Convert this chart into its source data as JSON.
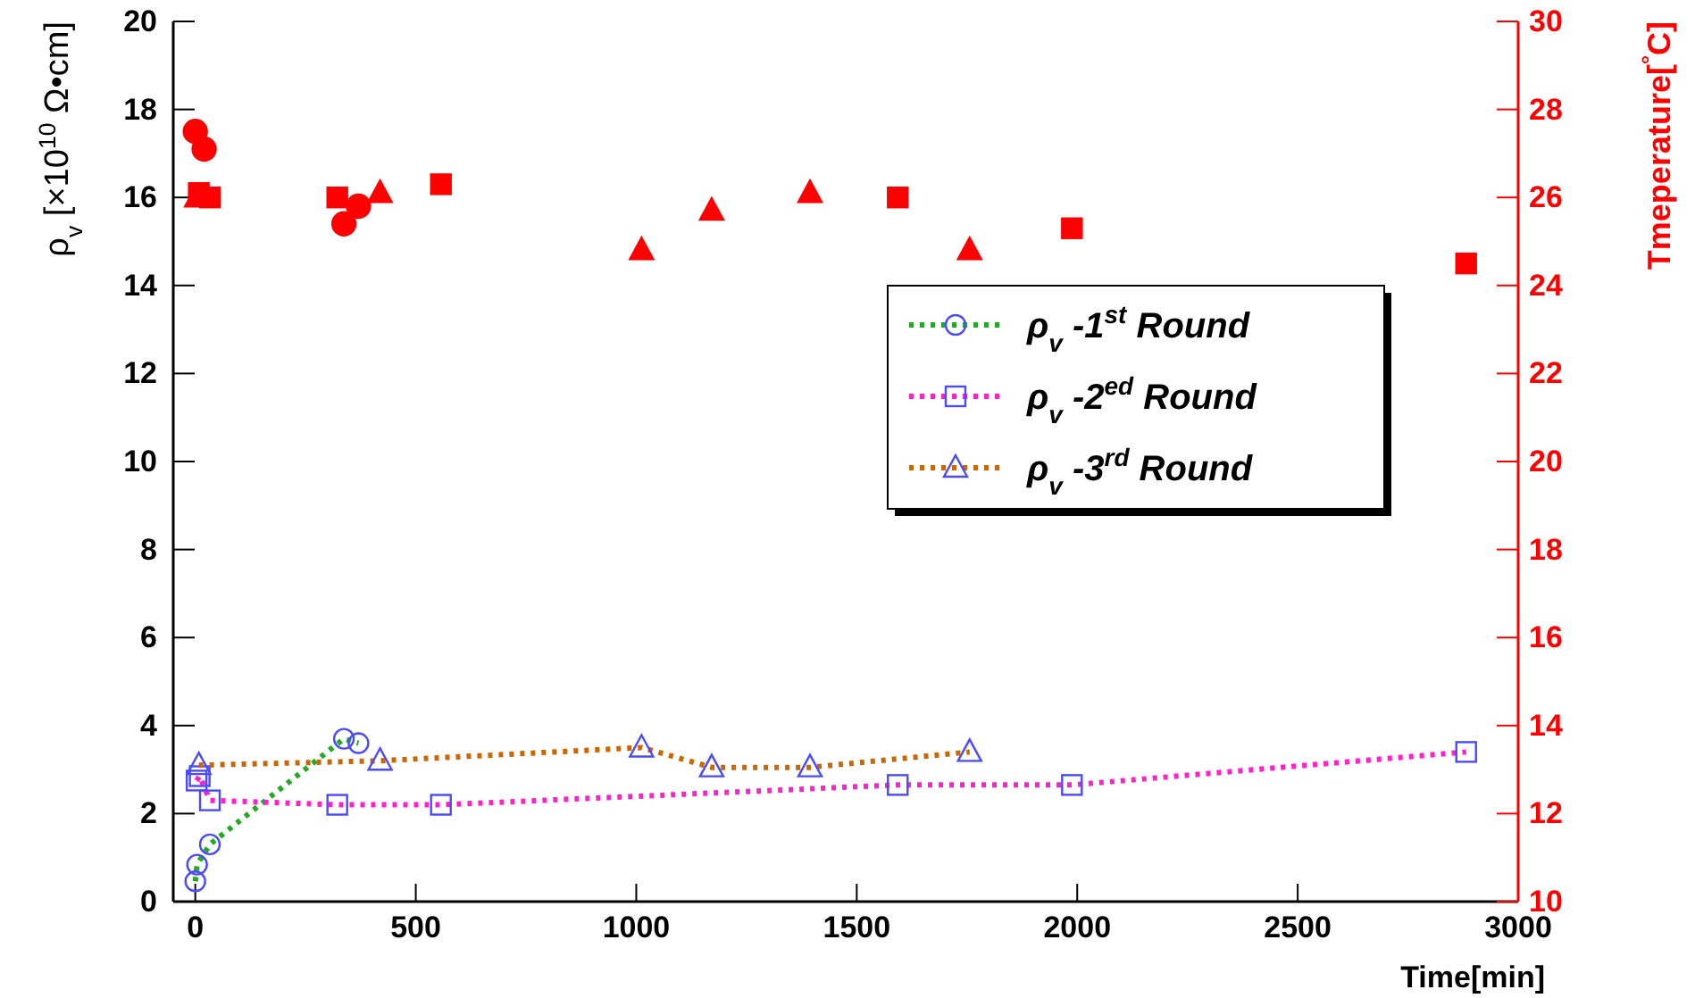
{
  "chart_data": {
    "type": "line",
    "xlabel": "Time[min]",
    "ylabel": "ρ$_{v}$ [×10$^{10}$ Ω•cm]",
    "y2label": "Tmeperature[$^{°}$C]",
    "xlim": [
      -50,
      3000
    ],
    "xticks": [
      0,
      500,
      1000,
      1500,
      2000,
      2500,
      3000
    ],
    "ylim": [
      0,
      20
    ],
    "yticks": [
      0,
      2,
      4,
      6,
      8,
      10,
      12,
      14,
      16,
      18,
      20
    ],
    "y2lim": [
      10,
      30
    ],
    "y2ticks": [
      10,
      12,
      14,
      16,
      18,
      20,
      22,
      24,
      26,
      28,
      30
    ],
    "legend": "right",
    "line_style": "dotted",
    "series": [
      {
        "name": "ρ$_{v}$ -1$^{st}$ Round",
        "color": "#22aa22",
        "marker": "circle",
        "x": [
          0,
          4,
          33,
          337,
          370
        ],
        "values": [
          0.46,
          0.84,
          1.3,
          3.7,
          3.6
        ]
      },
      {
        "name": "ρ$_{v}$ -2$^{ed}$ Round",
        "color": "#ff22cc",
        "marker": "square",
        "x": [
          3,
          10,
          33,
          322,
          557,
          1593,
          1988,
          2882
        ],
        "values": [
          2.75,
          2.85,
          2.3,
          2.2,
          2.2,
          2.65,
          2.65,
          3.4
        ]
      },
      {
        "name": "ρ$_{v}$ -3$^{rd}$ Round",
        "color": "#cc6600",
        "marker": "triangle",
        "x": [
          8,
          419,
          1012,
          1171,
          1394,
          1756
        ],
        "values": [
          3.1,
          3.2,
          3.5,
          3.05,
          3.05,
          3.4
        ]
      },
      {
        "type": "scatter",
        "axis": "y2",
        "color": "#ff0000",
        "marker": "circle",
        "x": [
          0,
          20,
          337,
          370
        ],
        "values": [
          27.5,
          27.1,
          25.4,
          25.8
        ]
      },
      {
        "type": "scatter",
        "axis": "y2",
        "color": "#ff0000",
        "marker": "square",
        "x": [
          8,
          33,
          322,
          557,
          1593,
          1988,
          2882
        ],
        "values": [
          26.1,
          26.0,
          26.0,
          26.3,
          26.0,
          25.3,
          24.5
        ]
      },
      {
        "type": "scatter",
        "axis": "y2",
        "color": "#ff0000",
        "marker": "triangle",
        "x": [
          3,
          419,
          1012,
          1171,
          1394,
          1756
        ],
        "values": [
          26.0,
          26.1,
          24.8,
          25.7,
          26.1,
          24.8
        ]
      }
    ]
  }
}
